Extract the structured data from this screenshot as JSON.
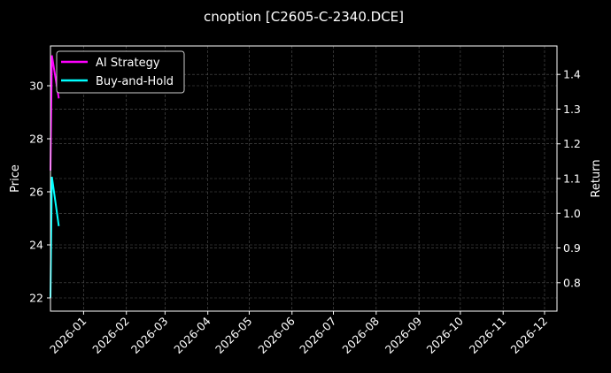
{
  "chart_data": {
    "type": "line",
    "title": "cnoption [C2605-C-2340.DCE]",
    "ylabel_left": "Price",
    "ylabel_right": "Return",
    "xlabel": "",
    "xlim": [
      "2025-12-08",
      "2026-12-10"
    ],
    "ylim_left": [
      21.5,
      31.5
    ],
    "ylim_right": [
      0.718,
      1.482
    ],
    "x_ticks": [
      "2026-01",
      "2026-02",
      "2026-03",
      "2026-04",
      "2026-05",
      "2026-06",
      "2026-07",
      "2026-08",
      "2026-09",
      "2026-10",
      "2026-11",
      "2026-12"
    ],
    "y_ticks_left": [
      "22",
      "24",
      "26",
      "28",
      "30"
    ],
    "y_ticks_right": [
      "0.8",
      "0.9",
      "1.0",
      "1.1",
      "1.2",
      "1.3",
      "1.4"
    ],
    "grid": true,
    "legend_position": "top-left",
    "background": "#000000",
    "series": [
      {
        "name": "AI Strategy",
        "axis": "right",
        "color": "#ff00ff",
        "x": [
          "2025-12-08",
          "2025-12-09",
          "2025-12-14"
        ],
        "values": [
          1.123,
          1.455,
          1.331
        ]
      },
      {
        "name": "Buy-and-Hold",
        "axis": "right",
        "color": "#00ffff",
        "x": [
          "2025-12-08",
          "2025-12-09",
          "2025-12-14"
        ],
        "values": [
          0.757,
          1.105,
          0.963
        ]
      }
    ]
  }
}
